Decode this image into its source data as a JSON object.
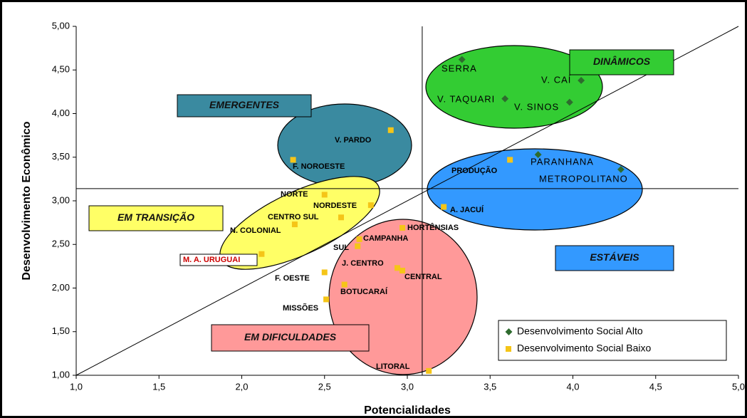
{
  "chart_data": {
    "type": "scatter",
    "xlabel": "Potencialidades",
    "ylabel": "Desenvolvimento Econômico",
    "xlim": [
      1.0,
      5.0
    ],
    "ylim": [
      1.0,
      5.0
    ],
    "xticks": [
      {
        "value": 1.0,
        "label": "1,0"
      },
      {
        "value": 1.5,
        "label": "1,5"
      },
      {
        "value": 2.0,
        "label": "2,0"
      },
      {
        "value": 2.5,
        "label": "2,5"
      },
      {
        "value": 3.0,
        "label": "3,0"
      },
      {
        "value": 3.5,
        "label": "3,5"
      },
      {
        "value": 4.0,
        "label": "4,0"
      },
      {
        "value": 4.5,
        "label": "4,5"
      },
      {
        "value": 5.0,
        "label": "5,0"
      }
    ],
    "yticks": [
      {
        "value": 1.0,
        "label": "1,00"
      },
      {
        "value": 1.5,
        "label": "1,50"
      },
      {
        "value": 2.0,
        "label": "2,00"
      },
      {
        "value": 2.5,
        "label": "2,50"
      },
      {
        "value": 3.0,
        "label": "3,00"
      },
      {
        "value": 3.5,
        "label": "3,50"
      },
      {
        "value": 4.0,
        "label": "4,00"
      },
      {
        "value": 4.5,
        "label": "4,50"
      },
      {
        "value": 5.0,
        "label": "5,00"
      }
    ],
    "quadrant_x": 3.09,
    "quadrant_y": 3.14,
    "annotations": [
      "DINÂMICOS",
      "EMERGENTES",
      "EM TRANSIÇÃO",
      "ESTÁVEIS",
      "EM DIFICULDADES"
    ],
    "legend": "lower right",
    "series": [
      {
        "name": "Desenvolvimento Social Alto",
        "color": "#2e6b2e",
        "labels": [
          "SERRA",
          "V. CAÍ",
          "V. TAQUARI",
          "V. SINOS",
          "PARANHANA",
          "METROPOLITANO"
        ],
        "x": [
          3.33,
          4.05,
          3.59,
          3.98,
          3.79,
          4.29
        ],
        "y": [
          4.62,
          4.38,
          4.17,
          4.13,
          3.53,
          3.36
        ]
      },
      {
        "name": "Desenvolvimento Social Baixo",
        "color": "#f5c518",
        "labels": [
          "V. PARDO",
          "F. NOROESTE",
          "PRODUÇÃO",
          "NORTE",
          "NORDESTE",
          "CENTRO SUL",
          "N. COLONIAL",
          "A. JACUÍ",
          "HORTÊNSIAS",
          "CAMPANHA",
          "SUL",
          "M. A. URUGUAI",
          "J. CENTRO",
          "CENTRAL",
          "F. OESTE",
          "BOTUCARAÍ",
          "MISSÕES",
          "LITORAL"
        ],
        "x": [
          2.9,
          2.31,
          3.62,
          2.5,
          2.78,
          2.6,
          2.32,
          3.22,
          2.97,
          2.71,
          2.7,
          2.12,
          2.94,
          2.97,
          2.5,
          2.62,
          2.51,
          3.13
        ],
        "y": [
          3.81,
          3.47,
          3.47,
          3.07,
          2.95,
          2.81,
          2.73,
          2.93,
          2.69,
          2.56,
          2.48,
          2.39,
          2.23,
          2.2,
          2.18,
          2.04,
          1.87,
          1.05
        ]
      }
    ]
  }
}
